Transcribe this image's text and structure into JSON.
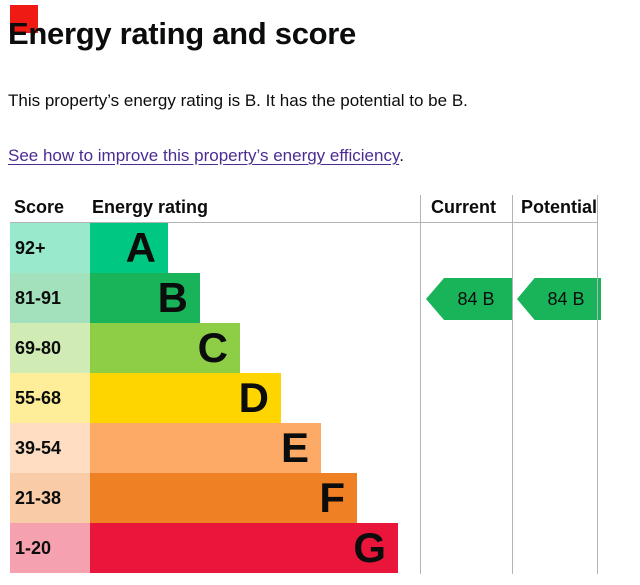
{
  "header": {
    "title": "Energy rating and score",
    "summary": "This property’s energy rating is B. It has the potential to be B.",
    "improve_link": "See how to improve this property’s energy efficiency",
    "improve_link_suffix": "."
  },
  "chart_data": {
    "type": "bar",
    "title": "Energy rating and score",
    "columns": {
      "score": "Score",
      "rating": "Energy rating",
      "current": "Current",
      "potential": "Potential"
    },
    "bands": [
      {
        "letter": "A",
        "score_range": "92+",
        "color": "#00c781",
        "tint": "#99e9cd"
      },
      {
        "letter": "B",
        "score_range": "81-91",
        "color": "#19b459",
        "tint": "#a3e1bc"
      },
      {
        "letter": "C",
        "score_range": "69-80",
        "color": "#8dce46",
        "tint": "#d1ebb5"
      },
      {
        "letter": "D",
        "score_range": "55-68",
        "color": "#ffd500",
        "tint": "#ffee99"
      },
      {
        "letter": "E",
        "score_range": "39-54",
        "color": "#fcaa65",
        "tint": "#feddc2"
      },
      {
        "letter": "F",
        "score_range": "21-38",
        "color": "#ef8023",
        "tint": "#f9cca7"
      },
      {
        "letter": "G",
        "score_range": "1-20",
        "color": "#e9153b",
        "tint": "#f6a1b0"
      }
    ],
    "current": {
      "value": "84",
      "band": "B",
      "color": "#19b459"
    },
    "potential": {
      "value": "84",
      "band": "B",
      "color": "#19b459"
    }
  },
  "colors": {
    "text": "#0b0c0c",
    "link": "#4c2c92",
    "grid": "#b1b4b6",
    "marker": "#f01a14"
  }
}
